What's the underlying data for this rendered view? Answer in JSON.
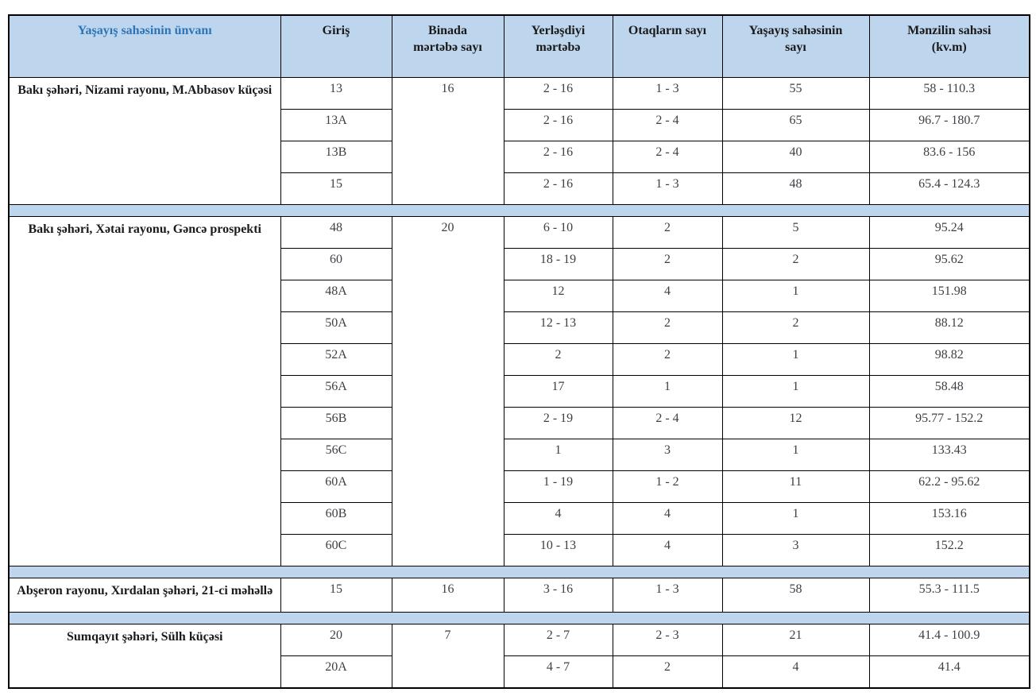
{
  "table": {
    "headers": [
      {
        "lines": [
          "Yaşayış sahəsinin ünvanı"
        ]
      },
      {
        "lines": [
          "Giriş"
        ]
      },
      {
        "lines": [
          "Binada",
          "mərtəbə sayı"
        ]
      },
      {
        "lines": [
          "Yerləşdiyi",
          "mərtəbə"
        ]
      },
      {
        "lines": [
          "Otaqların sayı"
        ]
      },
      {
        "lines": [
          "Yaşayış sahəsinin",
          "sayı"
        ]
      },
      {
        "lines": [
          "Mənzilin sahəsi",
          "(kv.m)"
        ]
      }
    ],
    "blocks": [
      {
        "address": "Bakı şəhəri, Nizami rayonu, M.Abbasov küçəsi",
        "building_floors": "16",
        "rows": [
          {
            "entrance": "13",
            "located_floors": "2 - 16",
            "rooms": "1 - 3",
            "unit_count": "55",
            "area": "58 - 110.3"
          },
          {
            "entrance": "13A",
            "located_floors": "2 - 16",
            "rooms": "2 - 4",
            "unit_count": "65",
            "area": "96.7 - 180.7"
          },
          {
            "entrance": "13B",
            "located_floors": "2 - 16",
            "rooms": "2 - 4",
            "unit_count": "40",
            "area": "83.6 - 156"
          },
          {
            "entrance": "15",
            "located_floors": "2 - 16",
            "rooms": "1 - 3",
            "unit_count": "48",
            "area": "65.4 - 124.3"
          }
        ]
      },
      {
        "address": "Bakı şəhəri, Xətai rayonu, Gəncə prospekti",
        "building_floors": "20",
        "rows": [
          {
            "entrance": "48",
            "located_floors": "6 - 10",
            "rooms": "2",
            "unit_count": "5",
            "area": "95.24"
          },
          {
            "entrance": "60",
            "located_floors": "18 - 19",
            "rooms": "2",
            "unit_count": "2",
            "area": "95.62"
          },
          {
            "entrance": "48A",
            "located_floors": "12",
            "rooms": "4",
            "unit_count": "1",
            "area": "151.98"
          },
          {
            "entrance": "50A",
            "located_floors": "12 - 13",
            "rooms": "2",
            "unit_count": "2",
            "area": "88.12"
          },
          {
            "entrance": "52A",
            "located_floors": "2",
            "rooms": "2",
            "unit_count": "1",
            "area": "98.82"
          },
          {
            "entrance": "56A",
            "located_floors": "17",
            "rooms": "1",
            "unit_count": "1",
            "area": "58.48"
          },
          {
            "entrance": "56B",
            "located_floors": "2 - 19",
            "rooms": "2 - 4",
            "unit_count": "12",
            "area": "95.77 - 152.2"
          },
          {
            "entrance": "56C",
            "located_floors": "1",
            "rooms": "3",
            "unit_count": "1",
            "area": "133.43"
          },
          {
            "entrance": "60A",
            "located_floors": "1 - 19",
            "rooms": "1 - 2",
            "unit_count": "11",
            "area": "62.2 - 95.62"
          },
          {
            "entrance": "60B",
            "located_floors": "4",
            "rooms": "4",
            "unit_count": "1",
            "area": "153.16"
          },
          {
            "entrance": "60C",
            "located_floors": "10 - 13",
            "rooms": "4",
            "unit_count": "3",
            "area": "152.2"
          }
        ]
      },
      {
        "address": "Abşeron rayonu, Xırdalan şəhəri, 21-ci məhəllə",
        "building_floors": "16",
        "rows": [
          {
            "entrance": "15",
            "located_floors": "3 - 16",
            "rooms": "1 - 3",
            "unit_count": "58",
            "area": "55.3 - 111.5"
          }
        ]
      },
      {
        "address": "Sumqayıt şəhəri, Sülh küçəsi",
        "building_floors": "7",
        "rows": [
          {
            "entrance": "20",
            "located_floors": "2 - 7",
            "rooms": "2 - 3",
            "unit_count": "21",
            "area": "41.4 - 100.9"
          },
          {
            "entrance": "20A",
            "located_floors": "4 - 7",
            "rooms": "2",
            "unit_count": "4",
            "area": "41.4"
          }
        ]
      }
    ],
    "colors": {
      "header_bg": "#bdd6ee",
      "separator_bg": "#bdd6ee",
      "header_accent_text": "#2e74b5",
      "border": "#000000"
    }
  }
}
